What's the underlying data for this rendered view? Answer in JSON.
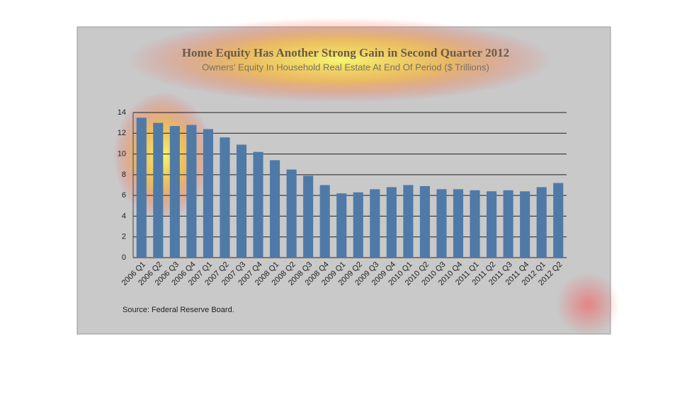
{
  "chart_data": {
    "type": "bar",
    "title": "Home Equity Has Another Strong Gain in Second Quarter 2012",
    "subtitle": "Owners' Equity In Household Real Estate At End Of Period ($ Trillions)",
    "source": "Source:  Federal Reserve Board.",
    "categories": [
      "2006 Q1",
      "2006 Q2",
      "2006 Q3",
      "2006 Q4",
      "2007 Q1",
      "2007 Q2",
      "2007 Q3",
      "2007 Q4",
      "2008 Q1",
      "2008 Q2",
      "2008 Q3",
      "2008 Q4",
      "2009 Q1",
      "2009 Q2",
      "2009 Q3",
      "2009 Q4",
      "2010 Q1",
      "2010 Q2",
      "2010 Q3",
      "2010 Q4",
      "2011 Q1",
      "2011 Q2",
      "2011 Q3",
      "2011 Q4",
      "2012 Q1",
      "2012 Q2"
    ],
    "values": [
      13.5,
      13.0,
      12.7,
      12.8,
      12.4,
      11.6,
      10.9,
      10.2,
      9.4,
      8.5,
      7.9,
      7.0,
      6.2,
      6.3,
      6.6,
      6.8,
      7.0,
      6.9,
      6.6,
      6.6,
      6.5,
      6.4,
      6.5,
      6.4,
      6.8,
      7.2
    ],
    "color": "#4f7aa8",
    "ylim": [
      0,
      14
    ],
    "yticks": [
      0,
      2,
      4,
      6,
      8,
      10,
      12,
      14
    ],
    "grid": true
  }
}
